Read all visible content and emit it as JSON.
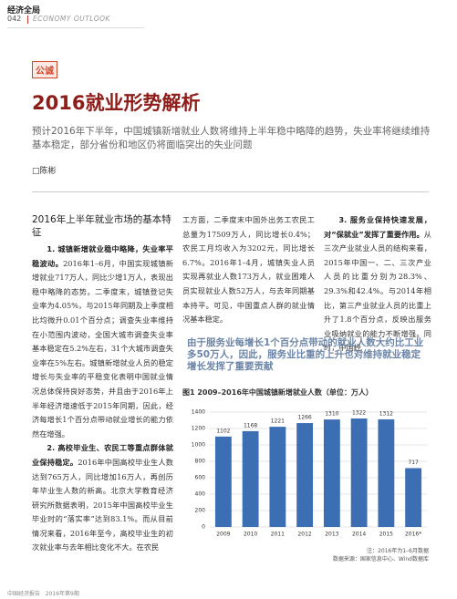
{
  "header": {
    "brand": "经济全局",
    "page": "042",
    "section": "ECONOMY OUTLOOK"
  },
  "tag": "公诚",
  "title": "2016就业形势解析",
  "lead": "预计2016年下半年，中国城镇新增就业人数将维持上半年稳中略降的趋势，失业率将继续维持基本稳定，部分省份和地区仍将面临突出的失业问题",
  "author": "陈彬",
  "section_heading": "2016年上半年就业市场的基本特征",
  "paragraphs": [
    {
      "lead": "1. 城镇新增就业稳中略降，失业率平稳波动。",
      "text": "2016年1–6月，中国实现城镇新增就业717万人，同比少增1万人，表现出稳中略降的态势。二季度末，城镇登记失业率为4.05%，与2015年同期及上季度相比均微升0.01个百分点；调查失业率维持在小范围内波动，全国大城市调查失业率基本稳定在5.2%左右，31个大城市调查失业率在5%左右。城镇新增就业人员的稳定增长与失业率的平稳变化表明中国就业情况总体保持良好态势，并且由于2016年上半年经济增速低于2015年同期，因此，经济每增长1个百分点带动就业增长的能力依然在增强。"
    },
    {
      "lead": "2. 高校毕业生、农民工等重点群体就业保持稳定。",
      "text": "2016年中国高校毕业生人数达到765万人，同比增加16万人，再创历年毕业生人数的新高。北京大学教育经济研究所数据表明，2015年中国高校毕业生毕业时的“落实率”达到83.1%。而从目前情况来看，2016年至今，高校毕业生的初次就业率与去年相比变化不大。在农民"
    }
  ],
  "column2": "工方面，二季度末中国外出务工农民工总量为17509万人，同比增长0.4%；农民工月均收入为3202元，同比增长6.7%。2016年1–4月，城镇失业人员实现再就业人数173万人，就业困难人员实现就业人数52万人，与去年同期基本持平。可见，中国重点人群的就业情况基本稳定。",
  "column3": {
    "lead": "3. 服务业保持快速发展，对“保就业”发挥了重要作用。",
    "text": "从三次产业就业人员的结构来看，2015年中国一、二、三次产业人员的比重分别为28.3%、29.3%和42.4%。与2014年相比，第三产业就业人员的比重上升了1.8个百分点，反映出服务业吸纳就业的能力不断增强。同时，中国经"
  },
  "pull_quote": "由于服务业每增长1个百分点带动的就业人数大约比工业多50万人，因此，服务业比重的上升也对维持就业稳定增长发挥了重要贡献",
  "figure": {
    "type": "bar",
    "title": "图1  2009–2016年中国城镇新增就业人数（单位：万人）",
    "categories": [
      "2009",
      "2010",
      "2011",
      "2012",
      "2013",
      "2014",
      "2015",
      "2016*"
    ],
    "values": [
      1102,
      1168,
      1221,
      1266,
      1310,
      1322,
      1312,
      717
    ],
    "color": "#3c6eb4",
    "ylim": [
      0,
      1400
    ],
    "yticks": [
      0,
      200,
      400,
      600,
      800,
      1000,
      1200,
      1400
    ],
    "grid": true,
    "notes": [
      "注：2016年为1–6月数据",
      "数据来源：国家信息中心、Wind数据库"
    ]
  },
  "footer": {
    "magazine": "中国经济报告",
    "issue": "2016年第9期"
  }
}
